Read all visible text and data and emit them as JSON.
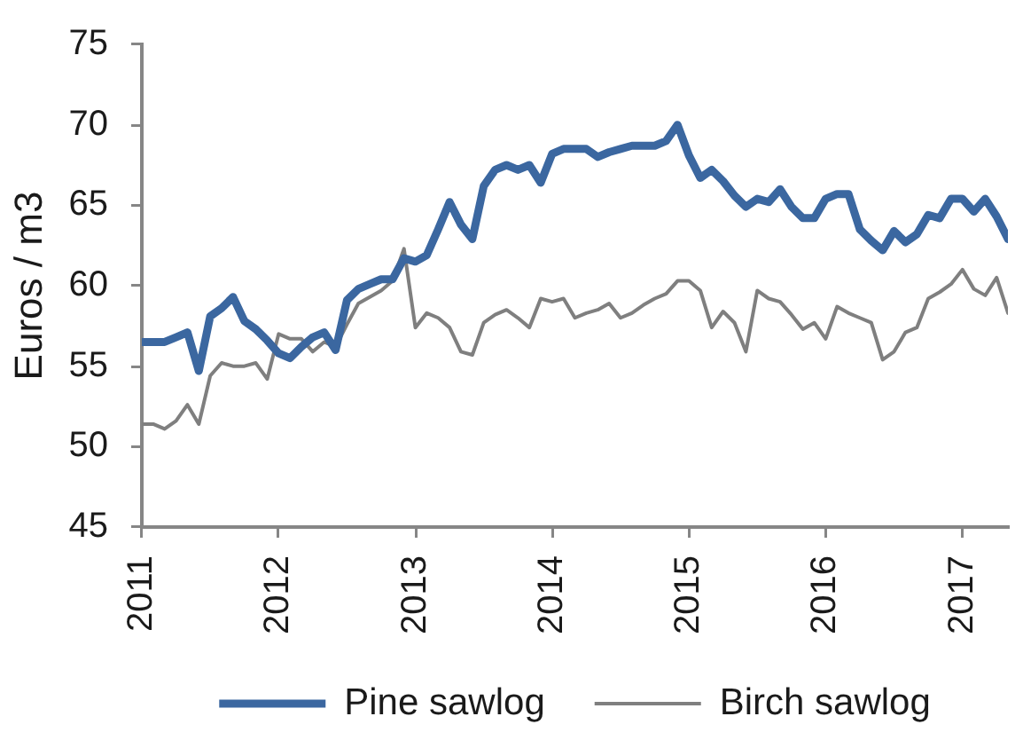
{
  "chart_data": {
    "type": "line",
    "ylabel": "Euros / m3",
    "x": [
      "2011-01",
      "2011-02",
      "2011-03",
      "2011-04",
      "2011-05",
      "2011-06",
      "2011-07",
      "2011-08",
      "2011-09",
      "2011-10",
      "2011-11",
      "2011-12",
      "2012-01",
      "2012-02",
      "2012-03",
      "2012-04",
      "2012-05",
      "2012-06",
      "2012-07",
      "2012-08",
      "2012-09",
      "2012-10",
      "2012-11",
      "2012-12",
      "2013-01",
      "2013-02",
      "2013-03",
      "2013-04",
      "2013-05",
      "2013-06",
      "2013-07",
      "2013-08",
      "2013-09",
      "2013-10",
      "2013-11",
      "2013-12",
      "2014-01",
      "2014-02",
      "2014-03",
      "2014-04",
      "2014-05",
      "2014-06",
      "2014-07",
      "2014-08",
      "2014-09",
      "2014-10",
      "2014-11",
      "2014-12",
      "2015-01",
      "2015-02",
      "2015-03",
      "2015-04",
      "2015-05",
      "2015-06",
      "2015-07",
      "2015-08",
      "2015-09",
      "2015-10",
      "2015-11",
      "2015-12",
      "2016-01",
      "2016-02",
      "2016-03",
      "2016-04",
      "2016-05",
      "2016-06",
      "2016-07",
      "2016-08",
      "2016-09",
      "2016-10",
      "2016-11",
      "2016-12",
      "2017-01",
      "2017-02",
      "2017-03",
      "2017-04",
      "2017-05"
    ],
    "series": [
      {
        "name": "Pine sawlog",
        "color": "#3b67a0",
        "values": [
          56.5,
          56.5,
          56.5,
          56.8,
          57.1,
          54.7,
          58.1,
          58.6,
          59.3,
          57.8,
          57.3,
          56.6,
          55.8,
          55.5,
          56.2,
          56.8,
          57.1,
          56.0,
          59.1,
          59.8,
          60.1,
          60.4,
          60.4,
          61.7,
          61.5,
          61.9,
          63.5,
          65.2,
          63.8,
          62.9,
          66.2,
          67.2,
          67.5,
          67.2,
          67.5,
          66.4,
          68.2,
          68.5,
          68.5,
          68.5,
          68.0,
          68.3,
          68.5,
          68.7,
          68.7,
          68.7,
          69.0,
          70.0,
          68.1,
          66.7,
          67.2,
          66.5,
          65.6,
          64.9,
          65.4,
          65.2,
          66.0,
          64.9,
          64.2,
          64.2,
          65.4,
          65.7,
          65.7,
          63.5,
          62.8,
          62.2,
          63.4,
          62.7,
          63.2,
          64.4,
          64.2,
          65.4,
          65.4,
          64.6,
          65.4,
          64.3,
          62.9
        ]
      },
      {
        "name": "Birch sawlog",
        "color": "#7f7f7f",
        "values": [
          51.4,
          51.4,
          51.1,
          51.6,
          52.6,
          51.4,
          54.4,
          55.2,
          55.0,
          55.0,
          55.2,
          54.2,
          57.0,
          56.7,
          56.7,
          55.9,
          56.5,
          56.2,
          57.6,
          58.9,
          59.3,
          59.7,
          60.3,
          62.3,
          57.4,
          58.3,
          58.0,
          57.4,
          55.9,
          55.7,
          57.7,
          58.2,
          58.5,
          58.0,
          57.4,
          59.2,
          59.0,
          59.2,
          58.0,
          58.3,
          58.5,
          58.9,
          58.0,
          58.3,
          58.8,
          59.2,
          59.5,
          60.3,
          60.3,
          59.7,
          57.4,
          58.4,
          57.7,
          55.9,
          59.7,
          59.2,
          59.0,
          58.2,
          57.3,
          57.7,
          56.7,
          58.7,
          58.3,
          58.0,
          57.7,
          55.4,
          55.9,
          57.1,
          57.4,
          59.2,
          59.6,
          60.1,
          61.0,
          59.8,
          59.4,
          60.5,
          58.3
        ]
      }
    ],
    "xlim": [
      "2011-01",
      "2017-05"
    ],
    "xticks": [
      "2011",
      "2012",
      "2013",
      "2014",
      "2015",
      "2016",
      "2017"
    ],
    "ylim": [
      45,
      75
    ],
    "yticks": [
      45,
      50,
      55,
      60,
      65,
      70,
      75
    ],
    "grid": false,
    "legend": "bottom",
    "marker": "none",
    "line_style": "solid"
  }
}
